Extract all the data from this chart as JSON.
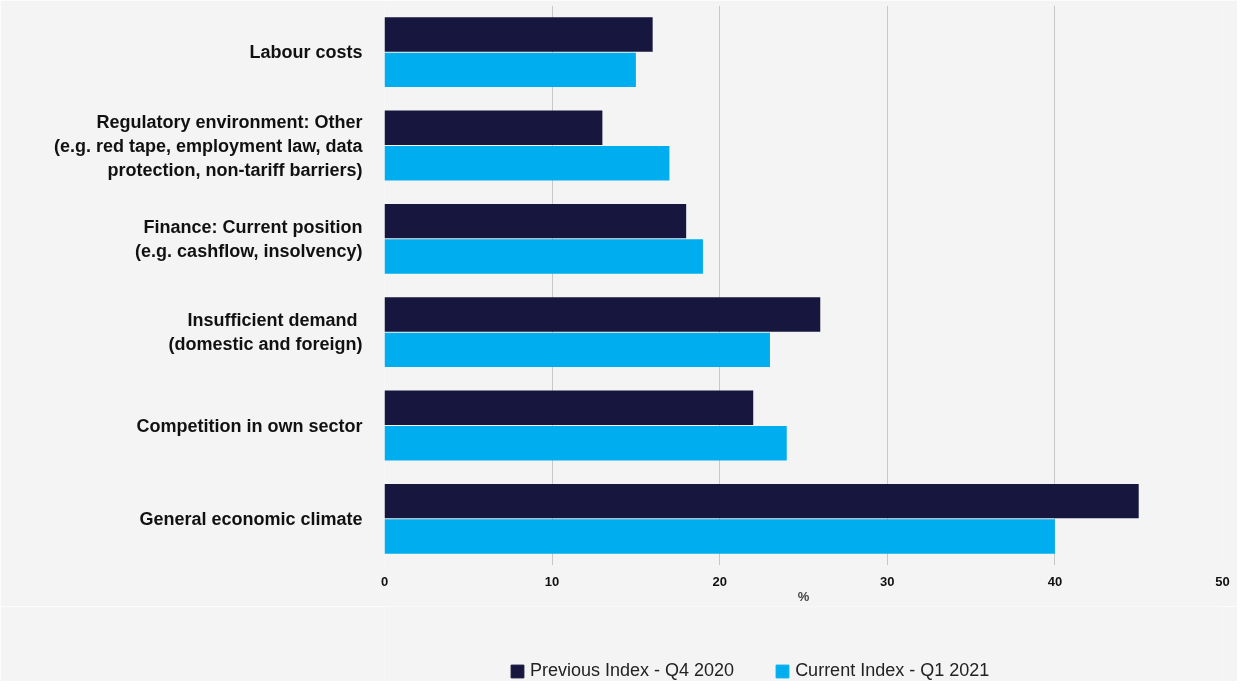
{
  "chart_data": {
    "type": "bar",
    "orientation": "horizontal",
    "xlabel": "%",
    "categories": [
      "Labour costs",
      "Regulatory environment: Other\n(e.g. red tape, employment law, data\nprotection, non-tariff barriers)",
      "Finance: Current position\n(e.g. cashflow, insolvency)",
      "Insufficient demand \n(domestic and foreign)",
      "Competition in own sector",
      "General economic climate"
    ],
    "series": [
      {
        "name": "Previous Index - Q4 2020",
        "color": "#16163f",
        "values": [
          16,
          13,
          18,
          26,
          22,
          45
        ]
      },
      {
        "name": "Current Index - Q1 2021",
        "color": "#00aeef",
        "values": [
          15,
          17,
          19,
          23,
          24,
          40
        ]
      }
    ],
    "xlim": [
      0,
      50
    ],
    "xticks": [
      0,
      10,
      20,
      30,
      40,
      50
    ],
    "grid": "x",
    "legend": "bottom"
  }
}
